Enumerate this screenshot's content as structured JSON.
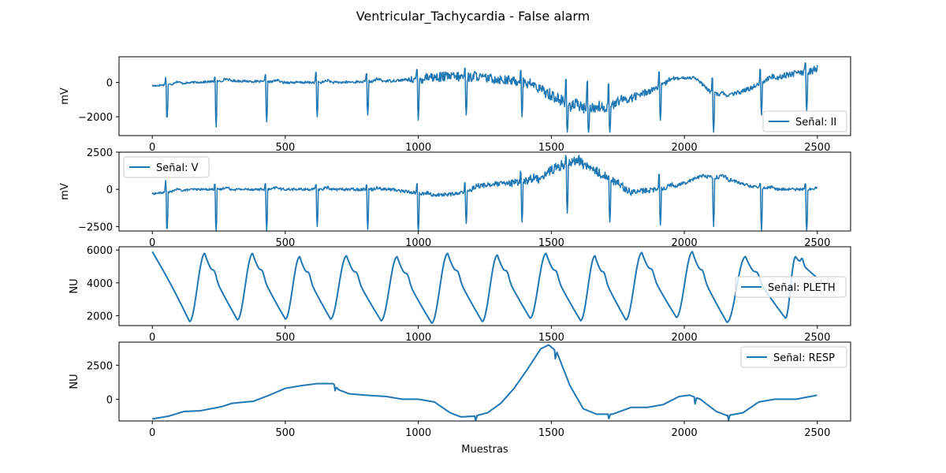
{
  "title": "Ventricular_Tachycardia - False alarm",
  "xlabel": "Muestras",
  "colors": {
    "line": "#1f77b4",
    "frame": "#000000",
    "background": "#ffffff"
  },
  "chart_data": [
    {
      "type": "line",
      "ylabel": "mV",
      "legend": "Señal: II",
      "legend_loc": "lower-right",
      "xlim": [
        -125,
        2625
      ],
      "ylim": [
        -3100,
        1500
      ],
      "xticks": [
        0,
        500,
        1000,
        1500,
        2000,
        2500
      ],
      "yticks": [
        0,
        -2000
      ],
      "ytick_labels": [
        "0",
        "−2000"
      ],
      "baseline": [
        [
          0,
          -200
        ],
        [
          150,
          0
        ],
        [
          300,
          100
        ],
        [
          500,
          0
        ],
        [
          700,
          0
        ],
        [
          900,
          100
        ],
        [
          1000,
          200
        ],
        [
          1100,
          350
        ],
        [
          1200,
          300
        ],
        [
          1300,
          200
        ],
        [
          1400,
          0
        ],
        [
          1500,
          -700
        ],
        [
          1560,
          -1300
        ],
        [
          1620,
          -1500
        ],
        [
          1700,
          -1500
        ],
        [
          1800,
          -900
        ],
        [
          1900,
          -300
        ],
        [
          1960,
          200
        ],
        [
          2040,
          300
        ],
        [
          2100,
          -600
        ],
        [
          2160,
          -800
        ],
        [
          2240,
          -400
        ],
        [
          2300,
          100
        ],
        [
          2400,
          500
        ],
        [
          2500,
          700
        ]
      ],
      "beats": [
        [
          55,
          -2300,
          300
        ],
        [
          240,
          -2600,
          400
        ],
        [
          430,
          -2300,
          600
        ],
        [
          620,
          -2000,
          800
        ],
        [
          810,
          -1900,
          700
        ],
        [
          1000,
          -2200,
          900
        ],
        [
          1180,
          -1900,
          1000
        ],
        [
          1390,
          -2000,
          1000
        ],
        [
          1560,
          -2900,
          700
        ],
        [
          1640,
          -2900,
          600
        ],
        [
          1720,
          -2900,
          500
        ],
        [
          1910,
          -2200,
          900
        ],
        [
          2110,
          -2900,
          600
        ],
        [
          2290,
          -1900,
          1100
        ],
        [
          2460,
          -1700,
          1300
        ]
      ],
      "noise": [
        [
          0,
          60
        ],
        [
          950,
          80
        ],
        [
          1000,
          280
        ],
        [
          1450,
          280
        ],
        [
          1500,
          380
        ],
        [
          1800,
          250
        ],
        [
          2000,
          80
        ],
        [
          2150,
          120
        ],
        [
          2500,
          200
        ]
      ]
    },
    {
      "type": "line",
      "ylabel": "mV",
      "legend": "Señal: V",
      "legend_loc": "upper-left",
      "xlim": [
        -125,
        2625
      ],
      "ylim": [
        -2800,
        2500
      ],
      "xticks": [
        0,
        500,
        1000,
        1500,
        2000,
        2500
      ],
      "yticks": [
        2500,
        0,
        -2500
      ],
      "ytick_labels": [
        "2500",
        "0",
        "−2500"
      ],
      "baseline": [
        [
          0,
          -300
        ],
        [
          150,
          0
        ],
        [
          400,
          0
        ],
        [
          700,
          0
        ],
        [
          900,
          0
        ],
        [
          1050,
          -400
        ],
        [
          1150,
          -300
        ],
        [
          1250,
          300
        ],
        [
          1350,
          400
        ],
        [
          1450,
          700
        ],
        [
          1500,
          1300
        ],
        [
          1550,
          1700
        ],
        [
          1600,
          1900
        ],
        [
          1700,
          900
        ],
        [
          1800,
          -200
        ],
        [
          1900,
          0
        ],
        [
          1980,
          300
        ],
        [
          2060,
          900
        ],
        [
          2140,
          800
        ],
        [
          2250,
          200
        ],
        [
          2350,
          0
        ],
        [
          2500,
          0
        ]
      ],
      "beats": [
        [
          55,
          -3000,
          600
        ],
        [
          240,
          -3000,
          500
        ],
        [
          430,
          -2800,
          500
        ],
        [
          620,
          -2500,
          400
        ],
        [
          810,
          -2700,
          400
        ],
        [
          1000,
          -3100,
          600
        ],
        [
          1180,
          -2300,
          700
        ],
        [
          1390,
          -2200,
          1400
        ],
        [
          1560,
          -1600,
          2400
        ],
        [
          1720,
          -2200,
          1000
        ],
        [
          1910,
          -2400,
          1400
        ],
        [
          2110,
          -2500,
          700
        ],
        [
          2290,
          -2900,
          500
        ],
        [
          2460,
          -3000,
          500
        ]
      ],
      "noise": [
        [
          0,
          60
        ],
        [
          1100,
          120
        ],
        [
          1300,
          200
        ],
        [
          1500,
          350
        ],
        [
          1700,
          300
        ],
        [
          1900,
          150
        ],
        [
          2200,
          120
        ],
        [
          2500,
          80
        ]
      ]
    },
    {
      "type": "line",
      "ylabel": "NU",
      "legend": "Señal: PLETH",
      "legend_loc": "center-right",
      "xlim": [
        -125,
        2625
      ],
      "ylim": [
        1400,
        6200
      ],
      "xticks": [
        0,
        500,
        1000,
        1500,
        2000,
        2500
      ],
      "yticks": [
        6000,
        4000,
        2000
      ],
      "ytick_labels": [
        "6000",
        "4000",
        "2000"
      ],
      "pulses": [
        [
          0,
          5800,
          5900
        ],
        [
          140,
          1650,
          5800
        ],
        [
          320,
          1750,
          5800
        ],
        [
          500,
          1800,
          5600
        ],
        [
          670,
          1800,
          5650
        ],
        [
          860,
          1700,
          5600
        ],
        [
          1050,
          1550,
          5800
        ],
        [
          1240,
          1650,
          5700
        ],
        [
          1420,
          1850,
          5800
        ],
        [
          1610,
          1700,
          5650
        ],
        [
          1780,
          1750,
          5850
        ],
        [
          1970,
          1900,
          5900
        ],
        [
          2160,
          1600,
          5600
        ],
        [
          2380,
          1850,
          5600
        ],
        [
          2500,
          4300,
          4300
        ]
      ]
    },
    {
      "type": "line",
      "ylabel": "NU",
      "legend": "Señal: RESP",
      "legend_loc": "upper-right",
      "xlim": [
        -125,
        2625
      ],
      "ylim": [
        -1600,
        4200
      ],
      "xticks": [
        0,
        500,
        1000,
        1500,
        2000,
        2500
      ],
      "yticks": [
        2500,
        0
      ],
      "ytick_labels": [
        "2500",
        "0"
      ],
      "points": [
        [
          0,
          -1450
        ],
        [
          60,
          -1250
        ],
        [
          120,
          -900
        ],
        [
          180,
          -850
        ],
        [
          260,
          -550
        ],
        [
          300,
          -300
        ],
        [
          380,
          -150
        ],
        [
          440,
          300
        ],
        [
          500,
          800
        ],
        [
          560,
          1000
        ],
        [
          620,
          1150
        ],
        [
          680,
          1150
        ],
        [
          700,
          700
        ],
        [
          740,
          400
        ],
        [
          800,
          300
        ],
        [
          880,
          200
        ],
        [
          940,
          0
        ],
        [
          1000,
          0
        ],
        [
          1060,
          -200
        ],
        [
          1120,
          -1000
        ],
        [
          1160,
          -1300
        ],
        [
          1210,
          -1250
        ],
        [
          1260,
          -1000
        ],
        [
          1310,
          -300
        ],
        [
          1360,
          800
        ],
        [
          1410,
          2200
        ],
        [
          1460,
          3700
        ],
        [
          1490,
          4000
        ],
        [
          1520,
          3500
        ],
        [
          1570,
          1000
        ],
        [
          1620,
          -700
        ],
        [
          1670,
          -1100
        ],
        [
          1730,
          -1100
        ],
        [
          1800,
          -600
        ],
        [
          1860,
          -600
        ],
        [
          1920,
          -400
        ],
        [
          1980,
          200
        ],
        [
          2020,
          300
        ],
        [
          2060,
          0
        ],
        [
          2120,
          -900
        ],
        [
          2160,
          -1200
        ],
        [
          2220,
          -1000
        ],
        [
          2280,
          -200
        ],
        [
          2340,
          0
        ],
        [
          2420,
          0
        ],
        [
          2500,
          300
        ]
      ],
      "spikes": [
        [
          685,
          -550
        ],
        [
          1215,
          -500
        ],
        [
          1515,
          -600
        ],
        [
          1715,
          -400
        ],
        [
          2040,
          -500
        ],
        [
          2165,
          -500
        ]
      ]
    }
  ]
}
